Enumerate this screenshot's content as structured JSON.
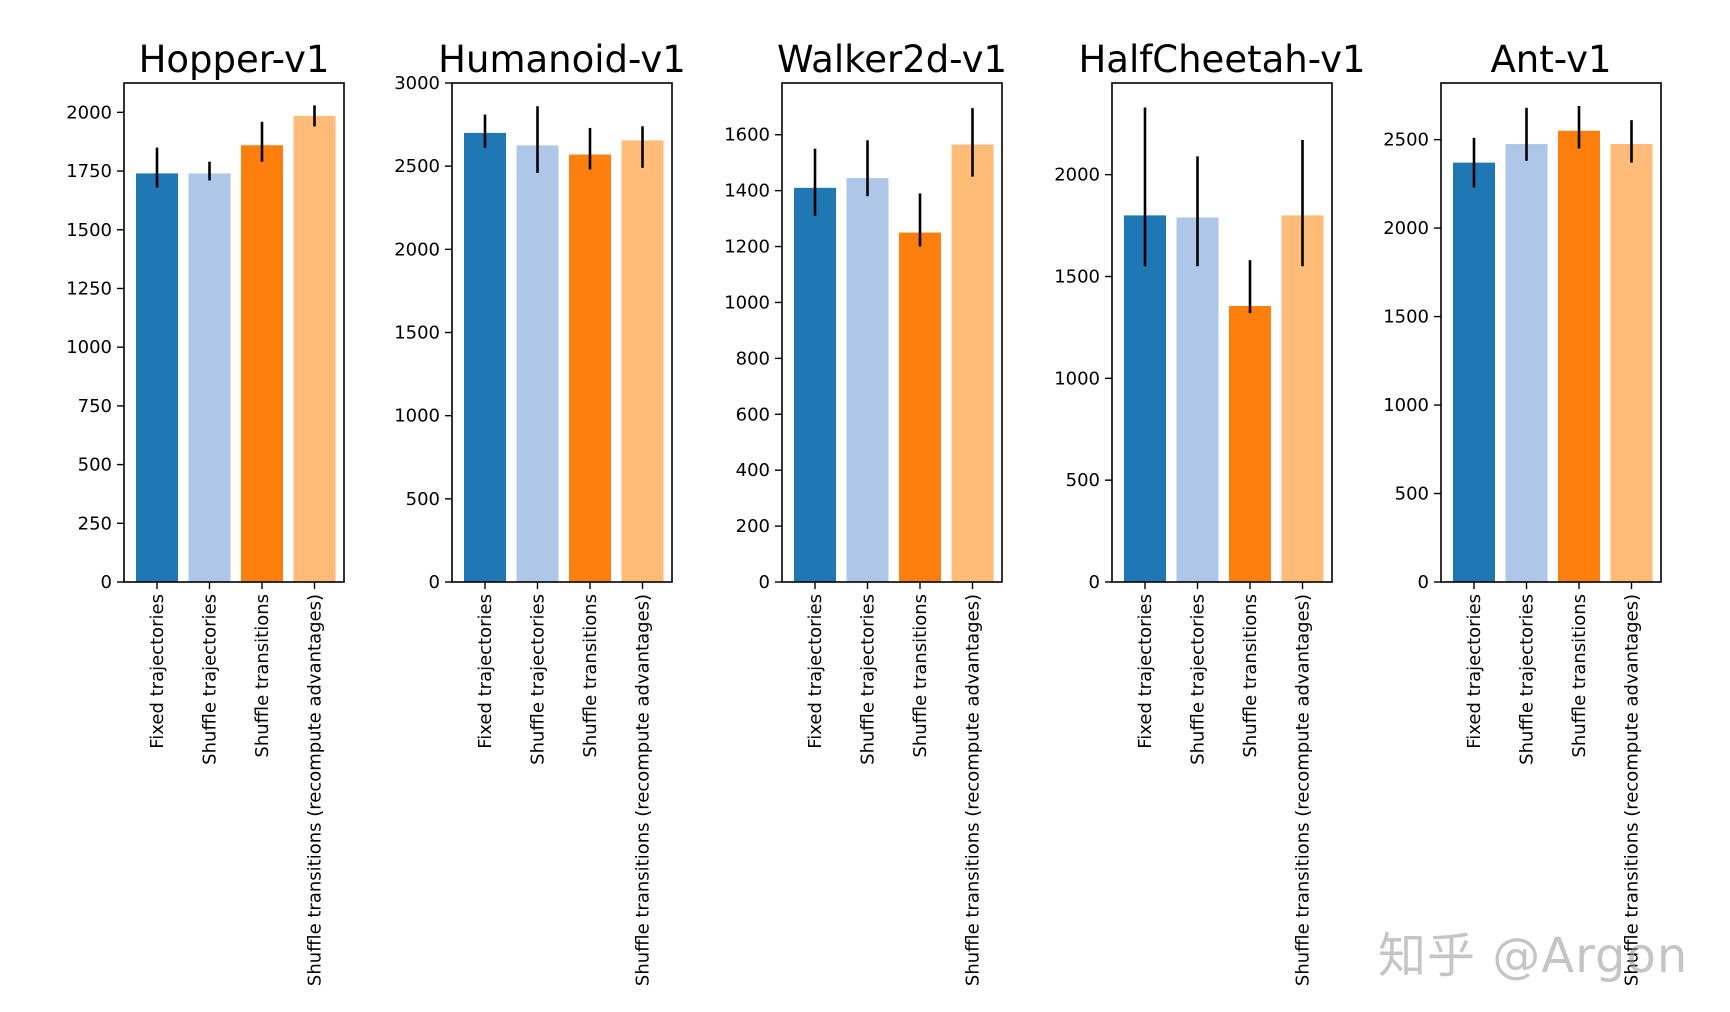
{
  "chart_data": [
    {
      "type": "bar",
      "title": "Hopper-v1",
      "categories": [
        "Fixed trajectories",
        "Shuffle trajectories",
        "Shuffle transitions",
        "Shuffle transitions (recompute advantages)"
      ],
      "values": [
        1740,
        1740,
        1860,
        1985
      ],
      "errors": [
        [
          1680,
          1850
        ],
        [
          1710,
          1790
        ],
        [
          1790,
          1960
        ],
        [
          1940,
          2030
        ]
      ],
      "ylim": [
        0,
        2125
      ],
      "yticks": [
        0,
        250,
        500,
        750,
        1000,
        1250,
        1500,
        1750,
        2000
      ],
      "xlabel": "",
      "ylabel": ""
    },
    {
      "type": "bar",
      "title": "Humanoid-v1",
      "categories": [
        "Fixed trajectories",
        "Shuffle trajectories",
        "Shuffle transitions",
        "Shuffle transitions (recompute advantages)"
      ],
      "values": [
        2700,
        2625,
        2570,
        2655
      ],
      "errors": [
        [
          2610,
          2810
        ],
        [
          2460,
          2860
        ],
        [
          2480,
          2730
        ],
        [
          2490,
          2740
        ]
      ],
      "ylim": [
        0,
        3000
      ],
      "yticks": [
        0,
        500,
        1000,
        1500,
        2000,
        2500,
        3000
      ],
      "xlabel": "",
      "ylabel": ""
    },
    {
      "type": "bar",
      "title": "Walker2d-v1",
      "categories": [
        "Fixed trajectories",
        "Shuffle trajectories",
        "Shuffle transitions",
        "Shuffle transitions (recompute advantages)"
      ],
      "values": [
        1410,
        1445,
        1250,
        1565
      ],
      "errors": [
        [
          1310,
          1550
        ],
        [
          1380,
          1580
        ],
        [
          1200,
          1390
        ],
        [
          1450,
          1695
        ]
      ],
      "ylim": [
        0,
        1785
      ],
      "yticks": [
        0,
        200,
        400,
        600,
        800,
        1000,
        1200,
        1400,
        1600
      ],
      "xlabel": "",
      "ylabel": ""
    },
    {
      "type": "bar",
      "title": "HalfCheetah-v1",
      "categories": [
        "Fixed trajectories",
        "Shuffle trajectories",
        "Shuffle transitions",
        "Shuffle transitions (recompute advantages)"
      ],
      "values": [
        1800,
        1790,
        1355,
        1800
      ],
      "errors": [
        [
          1550,
          2330
        ],
        [
          1550,
          2090
        ],
        [
          1320,
          1580
        ],
        [
          1550,
          2170
        ]
      ],
      "ylim": [
        0,
        2450
      ],
      "yticks": [
        0,
        500,
        1000,
        1500,
        2000
      ],
      "xlabel": "",
      "ylabel": ""
    },
    {
      "type": "bar",
      "title": "Ant-v1",
      "categories": [
        "Fixed trajectories",
        "Shuffle trajectories",
        "Shuffle transitions",
        "Shuffle transitions (recompute advantages)"
      ],
      "values": [
        2370,
        2475,
        2550,
        2475
      ],
      "errors": [
        [
          2230,
          2510
        ],
        [
          2380,
          2680
        ],
        [
          2450,
          2690
        ],
        [
          2370,
          2610
        ]
      ],
      "ylim": [
        0,
        2820
      ],
      "yticks": [
        0,
        500,
        1000,
        1500,
        2000,
        2500
      ],
      "xlabel": "",
      "ylabel": ""
    }
  ],
  "colors": [
    "#1f77b4",
    "#aec7e8",
    "#ff7f0e",
    "#ffbb78"
  ],
  "watermark": "知乎 @Argon"
}
